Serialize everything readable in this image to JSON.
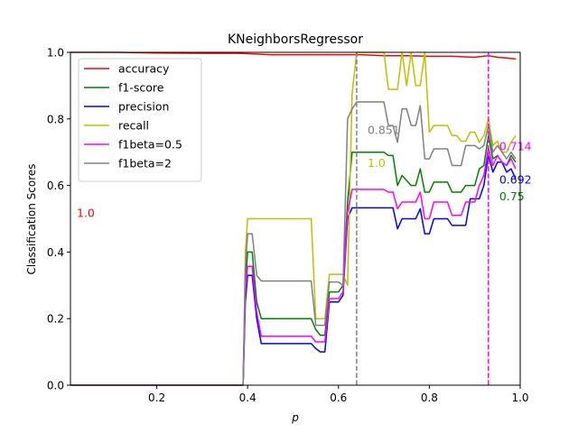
{
  "chart_data": {
    "type": "line",
    "title": "KNeighborsRegressor",
    "xlabel": "p",
    "ylabel": "Classification Scores",
    "xlim": [
      0.01,
      1.0
    ],
    "ylim": [
      0.0,
      1.0
    ],
    "xticks": [
      0.2,
      0.4,
      0.6,
      0.8,
      1.0
    ],
    "yticks": [
      0.0,
      0.2,
      0.4,
      0.6,
      0.8,
      1.0
    ],
    "xtick_labels": [
      "0.2",
      "0.4",
      "0.6",
      "0.8",
      "1.0"
    ],
    "ytick_labels": [
      "0.0",
      "0.2",
      "0.4",
      "0.6",
      "0.8",
      "1.0"
    ],
    "grid": false,
    "legend_position": "top-left",
    "series": [
      {
        "name": "accuracy",
        "color": "#ff0000",
        "points": [
          [
            0.01,
            1.0
          ],
          [
            0.1,
            1.0
          ],
          [
            0.2,
            0.998
          ],
          [
            0.3,
            0.997
          ],
          [
            0.38,
            0.997
          ],
          [
            0.42,
            0.995
          ],
          [
            0.45,
            0.993
          ],
          [
            0.5,
            0.993
          ],
          [
            0.55,
            0.993
          ],
          [
            0.6,
            0.993
          ],
          [
            0.65,
            0.993
          ],
          [
            0.7,
            0.99
          ],
          [
            0.75,
            0.99
          ],
          [
            0.8,
            0.988
          ],
          [
            0.85,
            0.988
          ],
          [
            0.9,
            0.985
          ],
          [
            0.93,
            0.99
          ],
          [
            0.95,
            0.985
          ],
          [
            0.97,
            0.983
          ],
          [
            0.99,
            0.98
          ]
        ]
      },
      {
        "name": "f1-score",
        "color": "#008000",
        "points": [
          [
            0.01,
            0.0
          ],
          [
            0.39,
            0.0
          ],
          [
            0.395,
            0.3
          ],
          [
            0.4,
            0.4
          ],
          [
            0.41,
            0.4
          ],
          [
            0.42,
            0.25
          ],
          [
            0.43,
            0.2
          ],
          [
            0.54,
            0.2
          ],
          [
            0.55,
            0.167
          ],
          [
            0.56,
            0.15
          ],
          [
            0.57,
            0.15
          ],
          [
            0.58,
            0.28
          ],
          [
            0.6,
            0.28
          ],
          [
            0.61,
            0.3
          ],
          [
            0.62,
            0.55
          ],
          [
            0.63,
            0.7
          ],
          [
            0.7,
            0.7
          ],
          [
            0.71,
            0.69
          ],
          [
            0.72,
            0.69
          ],
          [
            0.73,
            0.6
          ],
          [
            0.74,
            0.63
          ],
          [
            0.76,
            0.6
          ],
          [
            0.77,
            0.6
          ],
          [
            0.78,
            0.65
          ],
          [
            0.79,
            0.58
          ],
          [
            0.8,
            0.58
          ],
          [
            0.81,
            0.61
          ],
          [
            0.84,
            0.61
          ],
          [
            0.85,
            0.58
          ],
          [
            0.87,
            0.58
          ],
          [
            0.88,
            0.6
          ],
          [
            0.9,
            0.6
          ],
          [
            0.91,
            0.65
          ],
          [
            0.92,
            0.66
          ],
          [
            0.93,
            0.75
          ],
          [
            0.94,
            0.68
          ],
          [
            0.95,
            0.69
          ],
          [
            0.96,
            0.67
          ],
          [
            0.97,
            0.66
          ],
          [
            0.98,
            0.69
          ],
          [
            0.99,
            0.67
          ]
        ]
      },
      {
        "name": "precision",
        "color": "#0000ff",
        "points": [
          [
            0.01,
            0.0
          ],
          [
            0.39,
            0.0
          ],
          [
            0.395,
            0.25
          ],
          [
            0.4,
            0.33
          ],
          [
            0.41,
            0.33
          ],
          [
            0.42,
            0.2
          ],
          [
            0.43,
            0.125
          ],
          [
            0.54,
            0.125
          ],
          [
            0.55,
            0.11
          ],
          [
            0.56,
            0.1
          ],
          [
            0.57,
            0.1
          ],
          [
            0.58,
            0.25
          ],
          [
            0.6,
            0.25
          ],
          [
            0.61,
            0.27
          ],
          [
            0.62,
            0.5
          ],
          [
            0.63,
            0.533
          ],
          [
            0.72,
            0.533
          ],
          [
            0.73,
            0.47
          ],
          [
            0.74,
            0.5
          ],
          [
            0.76,
            0.5
          ],
          [
            0.77,
            0.5
          ],
          [
            0.78,
            0.53
          ],
          [
            0.79,
            0.455
          ],
          [
            0.8,
            0.455
          ],
          [
            0.81,
            0.5
          ],
          [
            0.84,
            0.5
          ],
          [
            0.85,
            0.48
          ],
          [
            0.88,
            0.48
          ],
          [
            0.89,
            0.56
          ],
          [
            0.91,
            0.56
          ],
          [
            0.92,
            0.6
          ],
          [
            0.93,
            0.692
          ],
          [
            0.94,
            0.64
          ],
          [
            0.95,
            0.67
          ],
          [
            0.96,
            0.67
          ],
          [
            0.97,
            0.64
          ],
          [
            0.98,
            0.65
          ],
          [
            0.99,
            0.62
          ]
        ]
      },
      {
        "name": "recall",
        "color": "#bfbf00",
        "points": [
          [
            0.01,
            0.0
          ],
          [
            0.39,
            0.0
          ],
          [
            0.395,
            0.4
          ],
          [
            0.4,
            0.5
          ],
          [
            0.54,
            0.5
          ],
          [
            0.55,
            0.2
          ],
          [
            0.57,
            0.2
          ],
          [
            0.58,
            0.333
          ],
          [
            0.61,
            0.333
          ],
          [
            0.62,
            0.3
          ],
          [
            0.63,
            0.875
          ],
          [
            0.64,
            1.0
          ],
          [
            0.7,
            1.0
          ],
          [
            0.71,
            0.889
          ],
          [
            0.73,
            0.889
          ],
          [
            0.74,
            1.0
          ],
          [
            0.75,
            0.9
          ],
          [
            0.76,
            1.0
          ],
          [
            0.77,
            0.9
          ],
          [
            0.78,
            0.9
          ],
          [
            0.79,
            1.0
          ],
          [
            0.8,
            0.76
          ],
          [
            0.81,
            0.78
          ],
          [
            0.84,
            0.78
          ],
          [
            0.85,
            0.75
          ],
          [
            0.86,
            0.75
          ],
          [
            0.87,
            0.733
          ],
          [
            0.88,
            0.733
          ],
          [
            0.89,
            0.76
          ],
          [
            0.9,
            0.76
          ],
          [
            0.91,
            0.73
          ],
          [
            0.92,
            0.75
          ],
          [
            0.93,
            0.8
          ],
          [
            0.94,
            0.72
          ],
          [
            0.95,
            0.733
          ],
          [
            0.96,
            0.7
          ],
          [
            0.97,
            0.7
          ],
          [
            0.98,
            0.73
          ],
          [
            0.99,
            0.75
          ]
        ]
      },
      {
        "name": "f1beta=0.5",
        "color": "#ff00ff",
        "points": [
          [
            0.01,
            0.0
          ],
          [
            0.39,
            0.0
          ],
          [
            0.395,
            0.28
          ],
          [
            0.4,
            0.357
          ],
          [
            0.41,
            0.357
          ],
          [
            0.42,
            0.22
          ],
          [
            0.43,
            0.147
          ],
          [
            0.54,
            0.147
          ],
          [
            0.55,
            0.13
          ],
          [
            0.57,
            0.13
          ],
          [
            0.58,
            0.26
          ],
          [
            0.6,
            0.26
          ],
          [
            0.61,
            0.28
          ],
          [
            0.62,
            0.52
          ],
          [
            0.63,
            0.588
          ],
          [
            0.7,
            0.588
          ],
          [
            0.71,
            0.58
          ],
          [
            0.72,
            0.58
          ],
          [
            0.73,
            0.53
          ],
          [
            0.74,
            0.55
          ],
          [
            0.76,
            0.55
          ],
          [
            0.77,
            0.55
          ],
          [
            0.78,
            0.58
          ],
          [
            0.79,
            0.5
          ],
          [
            0.8,
            0.5
          ],
          [
            0.81,
            0.55
          ],
          [
            0.84,
            0.55
          ],
          [
            0.85,
            0.51
          ],
          [
            0.87,
            0.51
          ],
          [
            0.88,
            0.55
          ],
          [
            0.9,
            0.55
          ],
          [
            0.91,
            0.6
          ],
          [
            0.92,
            0.63
          ],
          [
            0.93,
            0.714
          ],
          [
            0.94,
            0.66
          ],
          [
            0.95,
            0.69
          ],
          [
            0.96,
            0.67
          ],
          [
            0.97,
            0.66
          ],
          [
            0.98,
            0.68
          ],
          [
            0.99,
            0.65
          ]
        ]
      },
      {
        "name": "f1beta=2",
        "color": "#808080",
        "points": [
          [
            0.01,
            0.0
          ],
          [
            0.39,
            0.0
          ],
          [
            0.395,
            0.35
          ],
          [
            0.4,
            0.455
          ],
          [
            0.41,
            0.455
          ],
          [
            0.42,
            0.33
          ],
          [
            0.43,
            0.313
          ],
          [
            0.54,
            0.313
          ],
          [
            0.55,
            0.18
          ],
          [
            0.57,
            0.18
          ],
          [
            0.58,
            0.31
          ],
          [
            0.6,
            0.31
          ],
          [
            0.61,
            0.3
          ],
          [
            0.62,
            0.8
          ],
          [
            0.63,
            0.83
          ],
          [
            0.64,
            0.851
          ],
          [
            0.7,
            0.851
          ],
          [
            0.71,
            0.78
          ],
          [
            0.72,
            0.78
          ],
          [
            0.73,
            0.73
          ],
          [
            0.74,
            0.83
          ],
          [
            0.75,
            0.83
          ],
          [
            0.76,
            0.78
          ],
          [
            0.77,
            0.78
          ],
          [
            0.78,
            0.84
          ],
          [
            0.79,
            0.68
          ],
          [
            0.8,
            0.68
          ],
          [
            0.81,
            0.71
          ],
          [
            0.84,
            0.71
          ],
          [
            0.85,
            0.66
          ],
          [
            0.87,
            0.66
          ],
          [
            0.88,
            0.72
          ],
          [
            0.9,
            0.72
          ],
          [
            0.91,
            0.71
          ],
          [
            0.92,
            0.72
          ],
          [
            0.93,
            0.78
          ],
          [
            0.94,
            0.7
          ],
          [
            0.95,
            0.72
          ],
          [
            0.96,
            0.7
          ],
          [
            0.97,
            0.68
          ],
          [
            0.98,
            0.7
          ],
          [
            0.99,
            0.68
          ]
        ]
      }
    ],
    "vlines": [
      {
        "x": 0.64,
        "color": "#808080",
        "style": "dashed"
      },
      {
        "x": 0.93,
        "color": "#ff00ff",
        "style": "dashed"
      }
    ],
    "annotations": [
      {
        "text": "1.0",
        "x": 0.01,
        "y": 0.5,
        "color": "#ff0000"
      },
      {
        "text": "0.851",
        "x": 0.65,
        "y": 0.75,
        "color": "#808080"
      },
      {
        "text": "1.0",
        "x": 0.65,
        "y": 0.65,
        "color": "#bfbf00"
      },
      {
        "text": "0.714",
        "x": 0.94,
        "y": 0.7,
        "color": "#ff00ff"
      },
      {
        "text": "0.692",
        "x": 0.94,
        "y": 0.6,
        "color": "#0000ff"
      },
      {
        "text": "0.75",
        "x": 0.94,
        "y": 0.55,
        "color": "#008000"
      }
    ]
  }
}
